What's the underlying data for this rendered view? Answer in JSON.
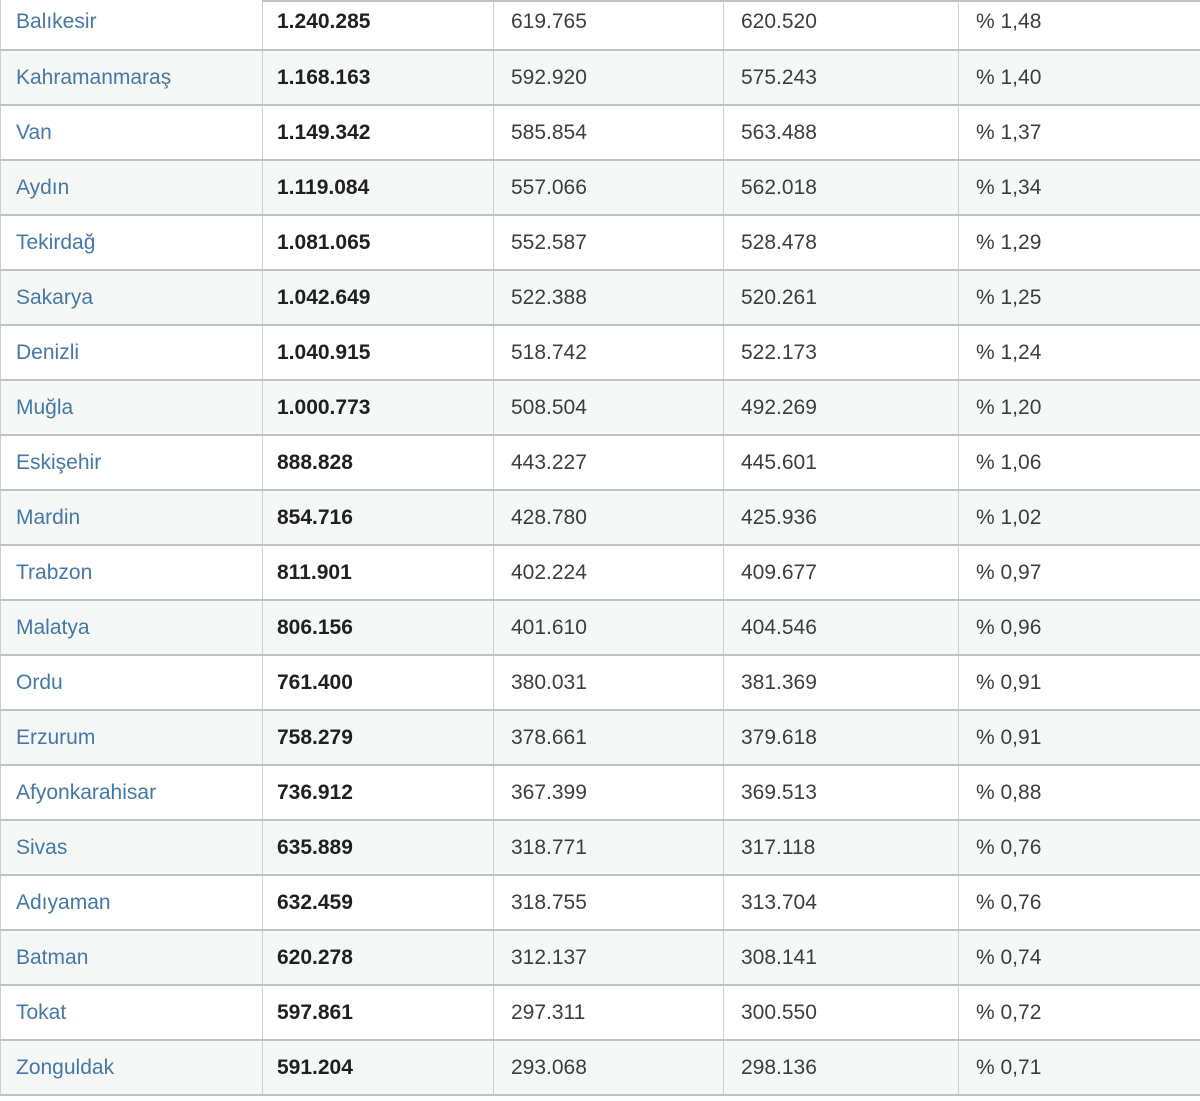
{
  "page": {
    "background": "#ffffff"
  },
  "table": {
    "colors": {
      "link": "#4478a8",
      "row_alt": "#f6f7f7",
      "border_horizontal": "#bfc3c6",
      "border_vertical": "#cdd0d3",
      "text": "#3b3e41",
      "text_bold": "#1e2022"
    },
    "rows": [
      {
        "province": "Balıkesir",
        "total": "1.240.285",
        "male": "619.765",
        "female": "620.520",
        "share": "% 1,48"
      },
      {
        "province": "Kahramanmaraş",
        "total": "1.168.163",
        "male": "592.920",
        "female": "575.243",
        "share": "% 1,40"
      },
      {
        "province": "Van",
        "total": "1.149.342",
        "male": "585.854",
        "female": "563.488",
        "share": "% 1,37"
      },
      {
        "province": "Aydın",
        "total": "1.119.084",
        "male": "557.066",
        "female": "562.018",
        "share": "% 1,34"
      },
      {
        "province": "Tekirdağ",
        "total": "1.081.065",
        "male": "552.587",
        "female": "528.478",
        "share": "% 1,29"
      },
      {
        "province": "Sakarya",
        "total": "1.042.649",
        "male": "522.388",
        "female": "520.261",
        "share": "% 1,25"
      },
      {
        "province": "Denizli",
        "total": "1.040.915",
        "male": "518.742",
        "female": "522.173",
        "share": "% 1,24"
      },
      {
        "province": "Muğla",
        "total": "1.000.773",
        "male": "508.504",
        "female": "492.269",
        "share": "% 1,20"
      },
      {
        "province": "Eskişehir",
        "total": "888.828",
        "male": "443.227",
        "female": "445.601",
        "share": "% 1,06"
      },
      {
        "province": "Mardin",
        "total": "854.716",
        "male": "428.780",
        "female": "425.936",
        "share": "% 1,02"
      },
      {
        "province": "Trabzon",
        "total": "811.901",
        "male": "402.224",
        "female": "409.677",
        "share": "% 0,97"
      },
      {
        "province": "Malatya",
        "total": "806.156",
        "male": "401.610",
        "female": "404.546",
        "share": "% 0,96"
      },
      {
        "province": "Ordu",
        "total": "761.400",
        "male": "380.031",
        "female": "381.369",
        "share": "% 0,91"
      },
      {
        "province": "Erzurum",
        "total": "758.279",
        "male": "378.661",
        "female": "379.618",
        "share": "% 0,91"
      },
      {
        "province": "Afyonkarahisar",
        "total": "736.912",
        "male": "367.399",
        "female": "369.513",
        "share": "% 0,88"
      },
      {
        "province": "Sivas",
        "total": "635.889",
        "male": "318.771",
        "female": "317.118",
        "share": "% 0,76"
      },
      {
        "province": "Adıyaman",
        "total": "632.459",
        "male": "318.755",
        "female": "313.704",
        "share": "% 0,76"
      },
      {
        "province": "Batman",
        "total": "620.278",
        "male": "312.137",
        "female": "308.141",
        "share": "% 0,74"
      },
      {
        "province": "Tokat",
        "total": "597.861",
        "male": "297.311",
        "female": "300.550",
        "share": "% 0,72"
      },
      {
        "province": "Zonguldak",
        "total": "591.204",
        "male": "293.068",
        "female": "298.136",
        "share": "% 0,71"
      }
    ]
  }
}
